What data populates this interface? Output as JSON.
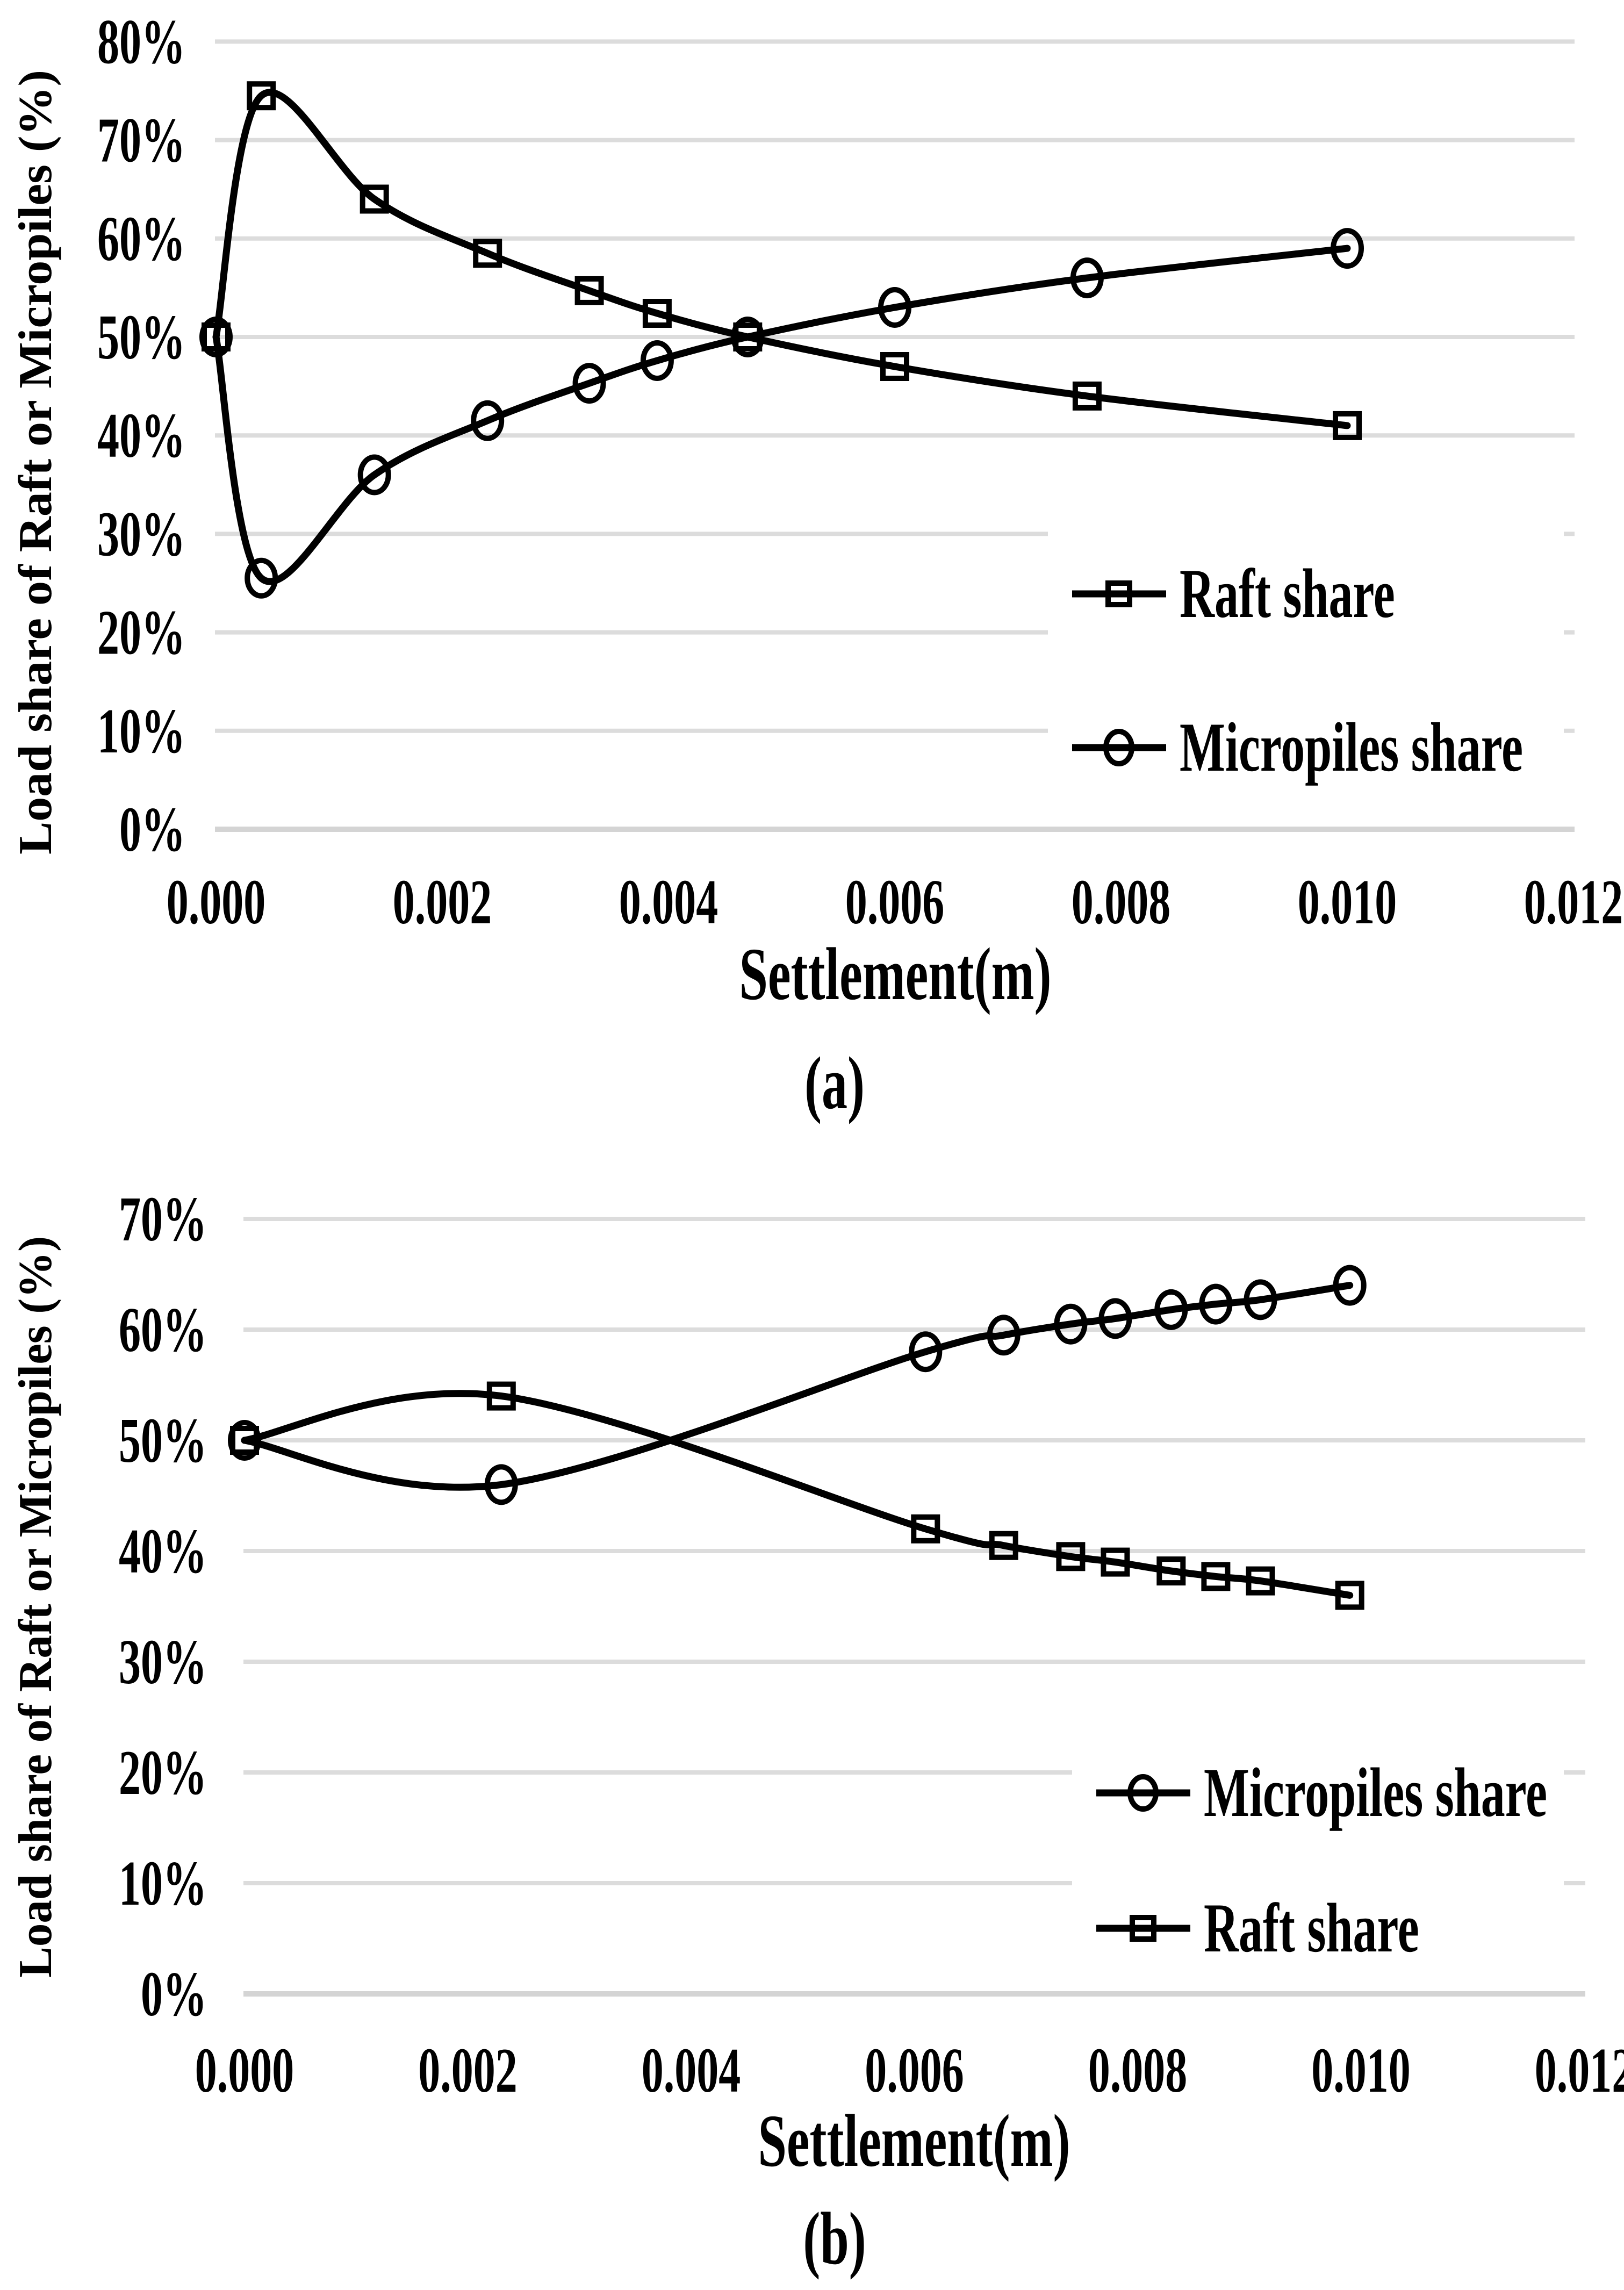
{
  "styles": {
    "curve_color": "#000000",
    "gridline_color": "#dcdcdc",
    "axis_line_color": "#d4d4d4",
    "text_color": "#000000",
    "background_color": "#ffffff",
    "legend_background": "#ffffff"
  },
  "chart_data": [
    {
      "id": "a",
      "type": "line",
      "caption": "(a)",
      "xlabel": "Settlement(m)",
      "ylabel": "Load share of Raft or Micropiles (%)",
      "xlim": [
        0.0,
        0.012
      ],
      "ylim": [
        0,
        80
      ],
      "x_ticks": [
        "0.000",
        "0.002",
        "0.004",
        "0.006",
        "0.008",
        "0.010",
        "0.012"
      ],
      "y_ticks": [
        "0%",
        "10%",
        "20%",
        "30%",
        "40%",
        "50%",
        "60%",
        "70%",
        "80%"
      ],
      "grid": "horizontal",
      "legend_position": "middle-right",
      "series": [
        {
          "name": "Raft share",
          "marker": "square",
          "x": [
            0.0,
            0.0004,
            0.0014,
            0.0024,
            0.0033,
            0.0039,
            0.0047,
            0.006,
            0.0077,
            0.01
          ],
          "y": [
            50,
            74.5,
            64,
            58.5,
            54.7,
            52.4,
            50,
            47,
            44,
            41
          ]
        },
        {
          "name": "Micropiles share",
          "marker": "circle",
          "x": [
            0.0,
            0.0004,
            0.0014,
            0.0024,
            0.0033,
            0.0039,
            0.0047,
            0.006,
            0.0077,
            0.01
          ],
          "y": [
            50,
            25.5,
            36,
            41.5,
            45.3,
            47.6,
            50,
            53,
            56,
            59
          ]
        }
      ],
      "legend": [
        {
          "label": "Raft share",
          "marker": "square"
        },
        {
          "label": "Micropiles share",
          "marker": "circle"
        }
      ]
    },
    {
      "id": "b",
      "type": "line",
      "caption": "(b)",
      "xlabel": "Settlement(m)",
      "ylabel": "Load share of Raft or Micropiles (%)",
      "xlim": [
        0.0,
        0.012
      ],
      "ylim": [
        0,
        70
      ],
      "x_ticks": [
        "0.000",
        "0.002",
        "0.004",
        "0.006",
        "0.008",
        "0.010",
        "0.012"
      ],
      "y_ticks": [
        "0%",
        "10%",
        "20%",
        "30%",
        "40%",
        "50%",
        "60%",
        "70%"
      ],
      "grid": "horizontal",
      "legend_position": "lower-right",
      "series": [
        {
          "name": "Micropiles share",
          "marker": "circle",
          "x": [
            0.0,
            0.0023,
            0.0061,
            0.0068,
            0.0074,
            0.0078,
            0.0083,
            0.0087,
            0.0091,
            0.0099
          ],
          "y": [
            50,
            46,
            58,
            59.5,
            60.5,
            61,
            61.8,
            62.3,
            62.7,
            64
          ]
        },
        {
          "name": "Raft share",
          "marker": "square",
          "x": [
            0.0,
            0.0023,
            0.0061,
            0.0068,
            0.0074,
            0.0078,
            0.0083,
            0.0087,
            0.0091,
            0.0099
          ],
          "y": [
            50,
            54,
            42,
            40.5,
            39.5,
            39,
            38.2,
            37.7,
            37.3,
            36
          ]
        }
      ],
      "legend": [
        {
          "label": "Micropiles share",
          "marker": "circle"
        },
        {
          "label": "Raft share",
          "marker": "square"
        }
      ]
    }
  ]
}
